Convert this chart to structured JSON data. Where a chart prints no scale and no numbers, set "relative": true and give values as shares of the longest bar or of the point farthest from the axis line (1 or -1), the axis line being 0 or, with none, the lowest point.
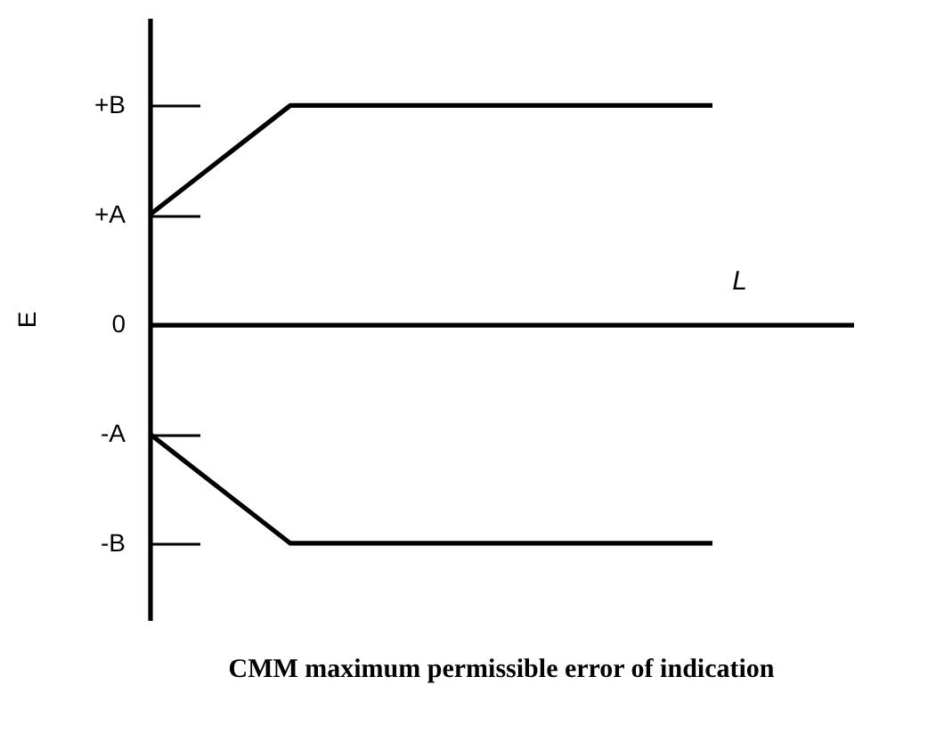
{
  "chart_data": {
    "type": "line",
    "title": "CMM maximum permissible error of indication",
    "xlabel": "L",
    "ylabel": "E",
    "categories": [
      null,
      null,
      null,
      null,
      null,
      null
    ],
    "series": [
      {
        "color": "#000000",
        "values": [
          0.5,
          1,
          1,
          1,
          1,
          null
        ]
      },
      {
        "color": "#000000",
        "values": [
          -0.5,
          -1,
          -1,
          -1,
          -1,
          null
        ]
      }
    ],
    "relative": true,
    "annotations": [
      "+B",
      "+A",
      "0",
      "-A",
      "-B"
    ],
    "tick_labels": "y",
    "grid": false,
    "legend": false,
    "marker": "none",
    "line_style": "solid"
  }
}
